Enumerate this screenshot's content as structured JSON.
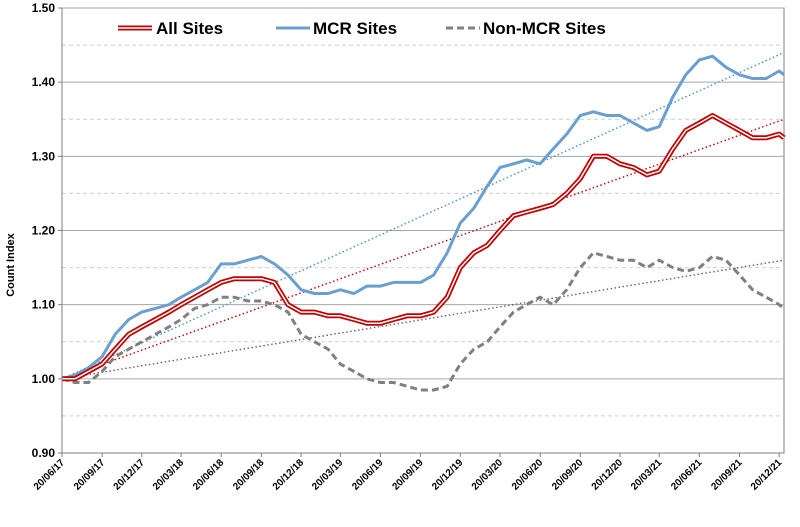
{
  "chart_data": {
    "type": "line",
    "title": "",
    "xlabel": "",
    "ylabel": "Count Index",
    "ylim": [
      0.9,
      1.5
    ],
    "y_ticks": [
      "0.90",
      "1.00",
      "1.10",
      "1.20",
      "1.30",
      "1.40",
      "1.50"
    ],
    "x_tick_labels": [
      "20/06/17",
      "20/09/17",
      "20/12/17",
      "20/03/18",
      "20/06/18",
      "20/09/18",
      "20/12/18",
      "20/03/19",
      "20/06/19",
      "20/09/19",
      "20/12/19",
      "20/03/20",
      "20/06/20",
      "20/09/20",
      "20/12/20",
      "20/03/21",
      "20/06/21",
      "20/09/21",
      "20/12/21"
    ],
    "grid": true,
    "legend_position": "top",
    "series": [
      {
        "name": "All Sites",
        "color": "#c00000",
        "style": "double-line",
        "x": [
          "20/06/17",
          "20/07/17",
          "20/08/17",
          "20/09/17",
          "20/10/17",
          "20/11/17",
          "20/12/17",
          "20/01/18",
          "20/02/18",
          "20/03/18",
          "20/04/18",
          "20/05/18",
          "20/06/18",
          "20/07/18",
          "20/08/18",
          "20/09/18",
          "20/10/18",
          "20/11/18",
          "20/12/18",
          "20/01/19",
          "20/02/19",
          "20/03/19",
          "20/04/19",
          "20/05/19",
          "20/06/19",
          "20/07/19",
          "20/08/19",
          "20/09/19",
          "20/10/19",
          "20/11/19",
          "20/12/19",
          "20/01/20",
          "20/02/20",
          "20/03/20",
          "20/04/20",
          "20/05/20",
          "20/06/20",
          "20/07/20",
          "20/08/20",
          "20/09/20",
          "20/10/20",
          "20/11/20",
          "20/12/20",
          "20/01/21",
          "20/02/21",
          "20/03/21",
          "20/04/21",
          "20/05/21",
          "20/06/21",
          "20/07/21",
          "20/08/21",
          "20/09/21",
          "20/10/21",
          "20/11/21",
          "20/12/21",
          "31/12/21"
        ],
        "values": [
          1.0,
          1.0,
          1.01,
          1.02,
          1.04,
          1.06,
          1.07,
          1.08,
          1.09,
          1.1,
          1.11,
          1.12,
          1.13,
          1.135,
          1.135,
          1.135,
          1.13,
          1.1,
          1.09,
          1.09,
          1.085,
          1.085,
          1.08,
          1.075,
          1.075,
          1.08,
          1.085,
          1.085,
          1.09,
          1.11,
          1.15,
          1.17,
          1.18,
          1.2,
          1.22,
          1.225,
          1.23,
          1.235,
          1.25,
          1.27,
          1.3,
          1.3,
          1.29,
          1.285,
          1.275,
          1.28,
          1.31,
          1.335,
          1.345,
          1.355,
          1.345,
          1.335,
          1.325,
          1.325,
          1.33,
          1.325
        ]
      },
      {
        "name": "MCR Sites",
        "color": "#6a9fcf",
        "style": "solid",
        "x": [
          "20/06/17",
          "20/07/17",
          "20/08/17",
          "20/09/17",
          "20/10/17",
          "20/11/17",
          "20/12/17",
          "20/01/18",
          "20/02/18",
          "20/03/18",
          "20/04/18",
          "20/05/18",
          "20/06/18",
          "20/07/18",
          "20/08/18",
          "20/09/18",
          "20/10/18",
          "20/11/18",
          "20/12/18",
          "20/01/19",
          "20/02/19",
          "20/03/19",
          "20/04/19",
          "20/05/19",
          "20/06/19",
          "20/07/19",
          "20/08/19",
          "20/09/19",
          "20/10/19",
          "20/11/19",
          "20/12/19",
          "20/01/20",
          "20/02/20",
          "20/03/20",
          "20/04/20",
          "20/05/20",
          "20/06/20",
          "20/07/20",
          "20/08/20",
          "20/09/20",
          "20/10/20",
          "20/11/20",
          "20/12/20",
          "20/01/21",
          "20/02/21",
          "20/03/21",
          "20/04/21",
          "20/05/21",
          "20/06/21",
          "20/07/21",
          "20/08/21",
          "20/09/21",
          "20/10/21",
          "20/11/21",
          "20/12/21",
          "31/12/21"
        ],
        "values": [
          1.0,
          1.005,
          1.015,
          1.03,
          1.06,
          1.08,
          1.09,
          1.095,
          1.1,
          1.11,
          1.12,
          1.13,
          1.155,
          1.155,
          1.16,
          1.165,
          1.155,
          1.14,
          1.12,
          1.115,
          1.115,
          1.12,
          1.115,
          1.125,
          1.125,
          1.13,
          1.13,
          1.13,
          1.14,
          1.17,
          1.21,
          1.23,
          1.26,
          1.285,
          1.29,
          1.295,
          1.29,
          1.31,
          1.33,
          1.355,
          1.36,
          1.355,
          1.355,
          1.345,
          1.335,
          1.34,
          1.38,
          1.41,
          1.43,
          1.435,
          1.42,
          1.41,
          1.405,
          1.405,
          1.415,
          1.41
        ]
      },
      {
        "name": "Non-MCR Sites",
        "color": "#808080",
        "style": "dashed",
        "x": [
          "20/06/17",
          "20/07/17",
          "20/08/17",
          "20/09/17",
          "20/10/17",
          "20/11/17",
          "20/12/17",
          "20/01/18",
          "20/02/18",
          "20/03/18",
          "20/04/18",
          "20/05/18",
          "20/06/18",
          "20/07/18",
          "20/08/18",
          "20/09/18",
          "20/10/18",
          "20/11/18",
          "20/12/18",
          "20/01/19",
          "20/02/19",
          "20/03/19",
          "20/04/19",
          "20/05/19",
          "20/06/19",
          "20/07/19",
          "20/08/19",
          "20/09/19",
          "20/10/19",
          "20/11/19",
          "20/12/19",
          "20/01/20",
          "20/02/20",
          "20/03/20",
          "20/04/20",
          "20/05/20",
          "20/06/20",
          "20/07/20",
          "20/08/20",
          "20/09/20",
          "20/10/20",
          "20/11/20",
          "20/12/20",
          "20/01/21",
          "20/02/21",
          "20/03/21",
          "20/04/21",
          "20/05/21",
          "20/06/21",
          "20/07/21",
          "20/08/21",
          "20/09/21",
          "20/10/21",
          "20/11/21",
          "20/12/21",
          "31/12/21"
        ],
        "values": [
          1.0,
          0.995,
          0.995,
          1.01,
          1.03,
          1.04,
          1.05,
          1.06,
          1.07,
          1.08,
          1.095,
          1.1,
          1.11,
          1.11,
          1.105,
          1.105,
          1.1,
          1.09,
          1.06,
          1.05,
          1.04,
          1.02,
          1.01,
          1.0,
          0.995,
          0.995,
          0.99,
          0.985,
          0.985,
          0.99,
          1.02,
          1.04,
          1.05,
          1.07,
          1.09,
          1.1,
          1.11,
          1.1,
          1.12,
          1.15,
          1.17,
          1.165,
          1.16,
          1.16,
          1.15,
          1.16,
          1.15,
          1.145,
          1.15,
          1.165,
          1.16,
          1.14,
          1.12,
          1.11,
          1.1,
          1.095
        ]
      }
    ],
    "trendlines": [
      {
        "series": "All Sites",
        "color": "#c00000",
        "values_at_ends": [
          1.0,
          1.35
        ]
      },
      {
        "series": "MCR Sites",
        "color": "#3d8fd1",
        "values_at_ends": [
          1.0,
          1.44
        ]
      },
      {
        "series": "Non-MCR Sites",
        "color": "#7a5c5c",
        "values_at_ends": [
          1.0,
          1.16
        ]
      }
    ]
  }
}
